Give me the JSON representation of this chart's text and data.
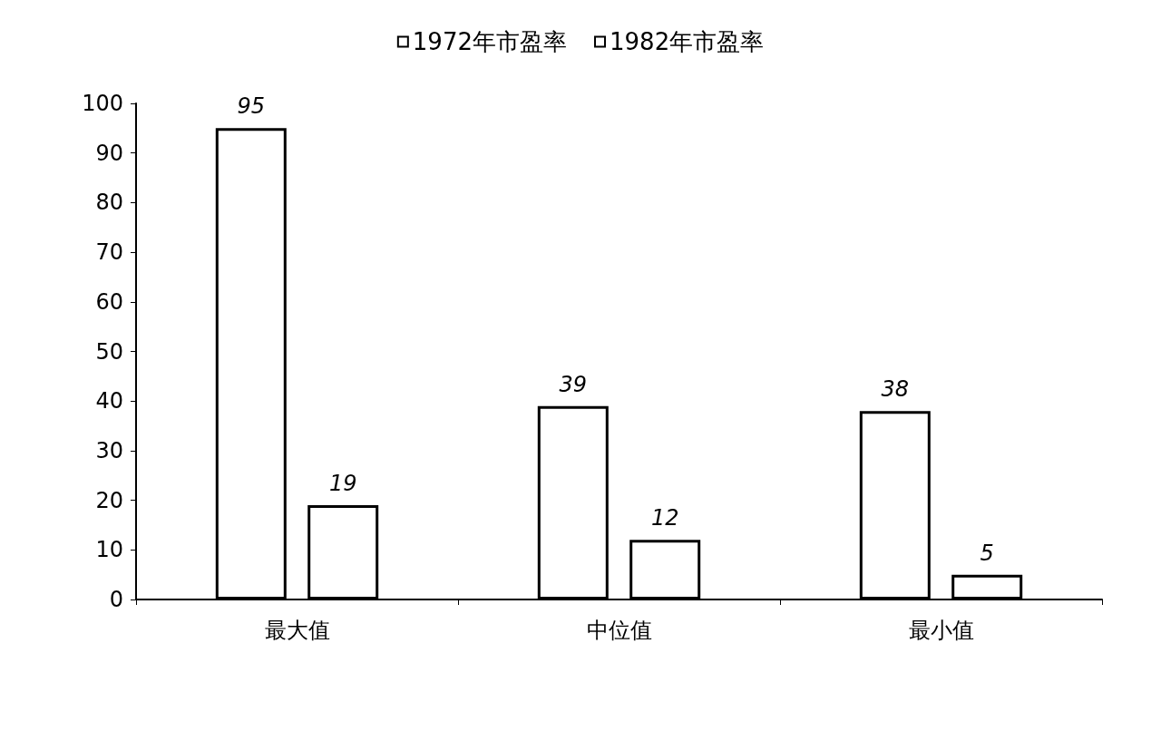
{
  "chart_data": {
    "type": "bar",
    "categories": [
      "最大值",
      "中位值",
      "最小值"
    ],
    "series": [
      {
        "name": "1972年市盈率",
        "color": "#ffffff",
        "values": [
          95,
          39,
          38
        ]
      },
      {
        "name": "1982年市盈率",
        "color": "#ffffff",
        "values": [
          19,
          12,
          5
        ]
      }
    ],
    "ylim": [
      0,
      100
    ],
    "yticks": [
      0,
      10,
      20,
      30,
      40,
      50,
      60,
      70,
      80,
      90,
      100
    ],
    "grid": false,
    "legend": "top",
    "data_labels": true
  }
}
